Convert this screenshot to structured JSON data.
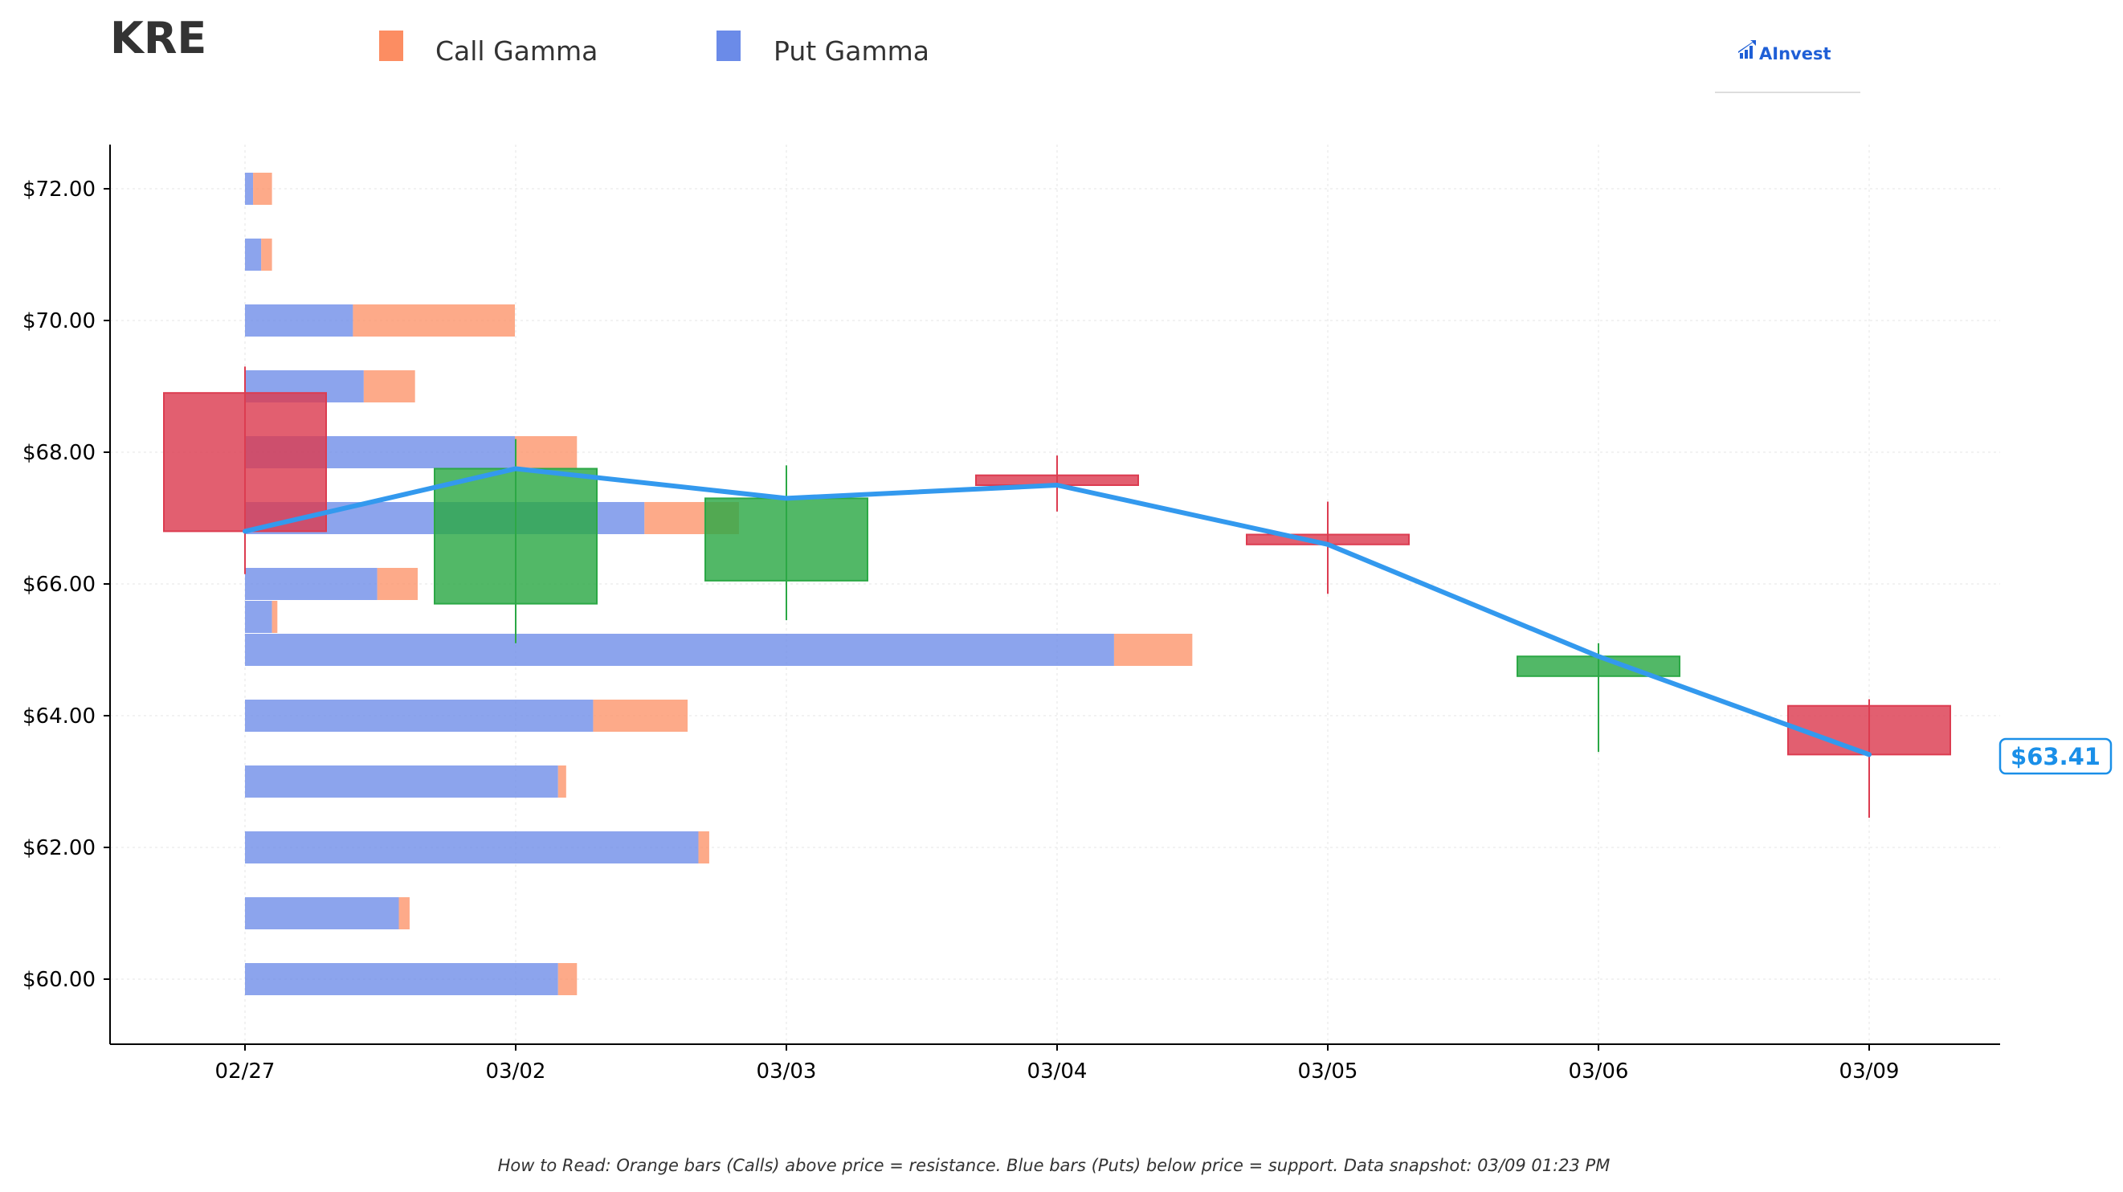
{
  "header": {
    "ticker": "KRE",
    "legend": [
      {
        "label": "Call Gamma",
        "color": "#fc8d62"
      },
      {
        "label": "Put Gamma",
        "color": "#6b8be8"
      }
    ],
    "logo_text": "AInvest"
  },
  "footer": {
    "note": "How to Read: Orange bars (Calls) above price = resistance. Blue bars (Puts) below price = support. Data snapshot: 03/09 01:23 PM"
  },
  "chart_data": {
    "type": "candlestick with horizontal gamma bars",
    "x_categories": [
      "02/27",
      "03/02",
      "03/03",
      "03/04",
      "03/05",
      "03/06",
      "03/09"
    ],
    "y_ticks": [
      "$60.00",
      "$62.00",
      "$64.00",
      "$66.00",
      "$68.00",
      "$70.00",
      "$72.00"
    ],
    "y_tick_values": [
      60,
      62,
      64,
      66,
      68,
      70,
      72
    ],
    "ylim": [
      59.0,
      72.7
    ],
    "grid": true,
    "legend_position": "top-left",
    "candles": [
      {
        "date": "02/27",
        "open": 68.9,
        "close": 66.8,
        "high": 69.3,
        "low": 66.15
      },
      {
        "date": "03/02",
        "open": 65.7,
        "close": 67.75,
        "high": 68.2,
        "low": 65.1
      },
      {
        "date": "03/03",
        "open": 66.05,
        "close": 67.3,
        "high": 67.8,
        "low": 65.45
      },
      {
        "date": "03/04",
        "open": 67.65,
        "close": 67.5,
        "high": 67.95,
        "low": 67.1
      },
      {
        "date": "03/05",
        "open": 66.75,
        "close": 66.6,
        "high": 67.25,
        "low": 65.85
      },
      {
        "date": "03/06",
        "open": 64.6,
        "close": 64.9,
        "high": 65.1,
        "low": 63.45
      },
      {
        "date": "03/09",
        "open": 64.15,
        "close": 63.41,
        "high": 64.25,
        "low": 62.45
      }
    ],
    "price_line": {
      "color": "#3399ee",
      "values": [
        66.8,
        67.75,
        67.3,
        67.5,
        66.6,
        64.9,
        63.41
      ]
    },
    "current_price_label": "$63.41",
    "gamma_bars": [
      {
        "strike": 72,
        "put": 0.03,
        "call": 0.07
      },
      {
        "strike": 71,
        "put": 0.06,
        "call": 0.04
      },
      {
        "strike": 70,
        "put": 0.4,
        "call": 0.6
      },
      {
        "strike": 69,
        "put": 0.44,
        "call": 0.19
      },
      {
        "strike": 68,
        "put": 1.0,
        "call": 0.23
      },
      {
        "strike": 67,
        "put": 1.48,
        "call": 0.35
      },
      {
        "strike": 66,
        "put": 0.49,
        "call": 0.15
      },
      {
        "strike": 65.5,
        "put": 0.1,
        "call": 0.02
      },
      {
        "strike": 65,
        "put": 3.22,
        "call": 0.29
      },
      {
        "strike": 64,
        "put": 1.29,
        "call": 0.35
      },
      {
        "strike": 63,
        "put": 1.16,
        "call": 0.03
      },
      {
        "strike": 62,
        "put": 1.68,
        "call": 0.04
      },
      {
        "strike": 61,
        "put": 0.57,
        "call": 0.04
      },
      {
        "strike": 60,
        "put": 1.16,
        "call": 0.07
      }
    ],
    "colors": {
      "up": "#2ca846",
      "down": "#dc3c50",
      "call": "#fc8d62",
      "put": "#6b8be8",
      "price_label": "#1a8fe8"
    }
  }
}
